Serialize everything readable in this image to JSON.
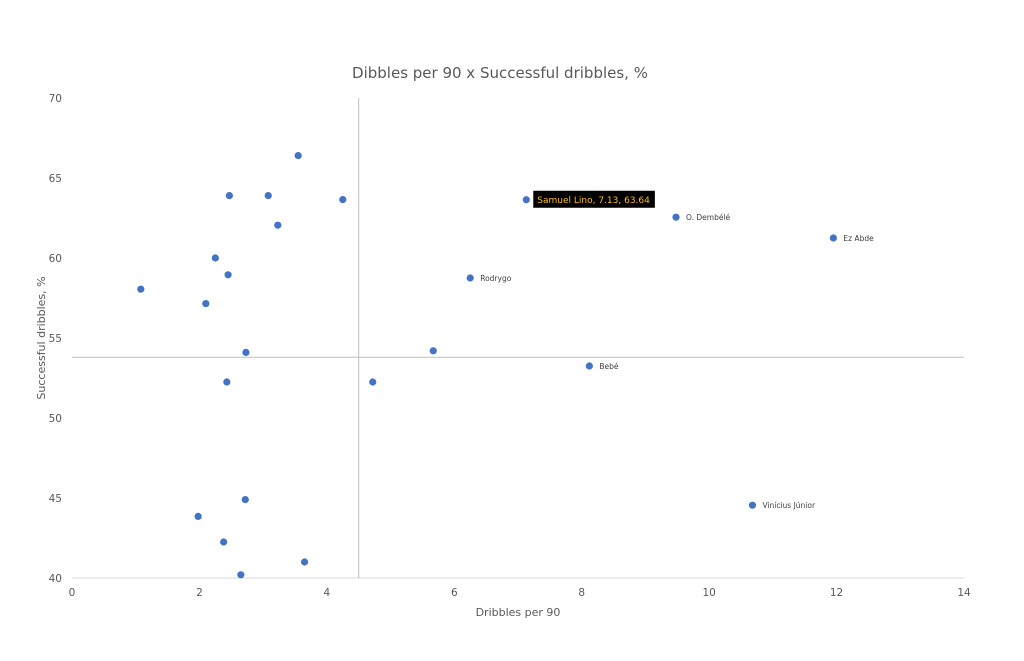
{
  "chart_data": {
    "type": "scatter",
    "title": "Dibbles per 90 x Successful dribbles, %",
    "xlabel": "Dribbles per 90",
    "ylabel": "Successful dribbles, %",
    "xlim": [
      0,
      14
    ],
    "ylim": [
      40,
      70
    ],
    "x_ticks": [
      "0",
      "2",
      "4",
      "6",
      "8",
      "10",
      "12",
      "14"
    ],
    "y_ticks": [
      "40",
      "45",
      "50",
      "55",
      "60",
      "65",
      "70"
    ],
    "grid": false,
    "reference_lines": {
      "x": 4.5,
      "y": 53.8
    },
    "marker_color": "#4472c4",
    "line_color": "#bfbfbf",
    "points": [
      {
        "x": 3.55,
        "y": 66.4,
        "label": ""
      },
      {
        "x": 2.47,
        "y": 63.9,
        "label": ""
      },
      {
        "x": 3.08,
        "y": 63.9,
        "label": ""
      },
      {
        "x": 4.25,
        "y": 63.65,
        "label": ""
      },
      {
        "x": 3.23,
        "y": 62.05,
        "label": ""
      },
      {
        "x": 2.25,
        "y": 60.0,
        "label": ""
      },
      {
        "x": 2.45,
        "y": 58.95,
        "label": ""
      },
      {
        "x": 1.08,
        "y": 58.05,
        "label": ""
      },
      {
        "x": 2.1,
        "y": 57.15,
        "label": ""
      },
      {
        "x": 2.73,
        "y": 54.1,
        "label": ""
      },
      {
        "x": 2.43,
        "y": 52.25,
        "label": ""
      },
      {
        "x": 4.72,
        "y": 52.25,
        "label": ""
      },
      {
        "x": 5.67,
        "y": 54.2,
        "label": ""
      },
      {
        "x": 2.72,
        "y": 44.9,
        "label": ""
      },
      {
        "x": 1.98,
        "y": 43.85,
        "label": ""
      },
      {
        "x": 2.38,
        "y": 42.25,
        "label": ""
      },
      {
        "x": 3.65,
        "y": 41.0,
        "label": ""
      },
      {
        "x": 2.65,
        "y": 40.2,
        "label": ""
      },
      {
        "x": 6.25,
        "y": 58.75,
        "label": "Rodrygo"
      },
      {
        "x": 9.48,
        "y": 62.55,
        "label": "O. Dembélé"
      },
      {
        "x": 11.95,
        "y": 61.25,
        "label": "Ez Abde"
      },
      {
        "x": 8.12,
        "y": 53.25,
        "label": "Bebé"
      },
      {
        "x": 10.68,
        "y": 44.55,
        "label": "Vinícius Júnior"
      }
    ],
    "highlight": {
      "x": 7.13,
      "y": 63.64,
      "label": "Samuel Lino, 7.13, 63.64"
    }
  }
}
